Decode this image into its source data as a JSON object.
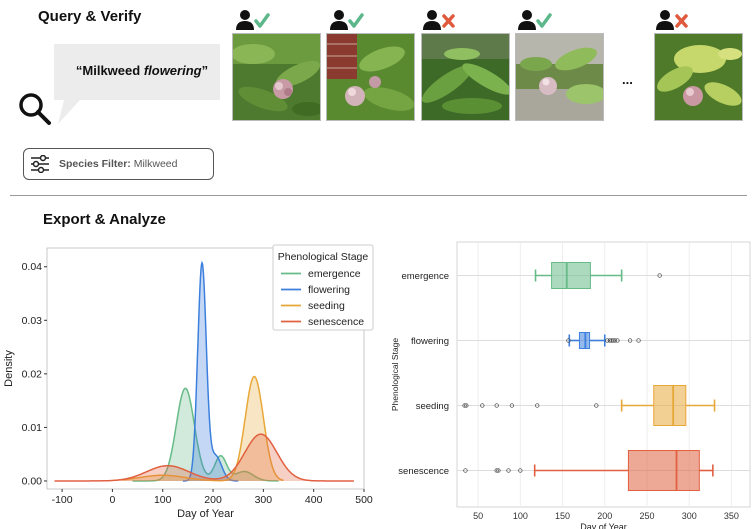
{
  "query_section": {
    "title": "Query & Verify",
    "query_prefix": "“Milkweed ",
    "query_emphasis": "flowering",
    "query_suffix": "”",
    "photos": [
      {
        "verified": true,
        "status_icon": "check-icon"
      },
      {
        "verified": true,
        "status_icon": "check-icon"
      },
      {
        "verified": false,
        "status_icon": "cross-icon"
      },
      {
        "verified": true,
        "status_icon": "check-icon"
      },
      {
        "verified": false,
        "status_icon": "cross-icon"
      }
    ],
    "ellipsis": "...",
    "filter_label": "Species Filter:",
    "filter_value": " Milkweed",
    "colors": {
      "check": "#5cb88a",
      "cross": "#e05a3e"
    }
  },
  "export_section": {
    "title": "Export & Analyze"
  },
  "chart_data": [
    {
      "type": "area",
      "title": "",
      "xlabel": "Day of Year",
      "ylabel": "Density",
      "xlim": [
        -130,
        500
      ],
      "ylim": [
        -0.0015,
        0.0435
      ],
      "xticks": [
        -100,
        0,
        100,
        200,
        300,
        400,
        500
      ],
      "yticks": [
        0.0,
        0.01,
        0.02,
        0.03,
        0.04
      ],
      "ytick_labels": [
        "0.00",
        "0.01",
        "0.02",
        "0.03",
        "0.04"
      ],
      "legend": {
        "title": "Phenological Stage",
        "placement": "top-right"
      },
      "series": [
        {
          "name": "emergence",
          "color": "#66bb88",
          "range": [
            40,
            330
          ],
          "components": [
            {
              "w": 0.78,
              "mu": 145,
              "sd": 18
            },
            {
              "w": 0.14,
              "mu": 215,
              "sd": 12
            },
            {
              "w": 0.08,
              "mu": 262,
              "sd": 18
            }
          ]
        },
        {
          "name": "flowering",
          "color": "#3d7fdd",
          "range": [
            140,
            250
          ],
          "components": [
            {
              "w": 0.86,
              "mu": 178,
              "sd": 8.5
            },
            {
              "w": 0.14,
              "mu": 205,
              "sd": 12
            }
          ]
        },
        {
          "name": "seeding",
          "color": "#e8a838",
          "range": [
            20,
            340
          ],
          "components": [
            {
              "w": 0.88,
              "mu": 282,
              "sd": 18
            },
            {
              "w": 0.12,
              "mu": 100,
              "sd": 45
            }
          ]
        },
        {
          "name": "senescence",
          "color": "#e06040",
          "range": [
            -115,
            480
          ],
          "components": [
            {
              "w": 0.7,
              "mu": 295,
              "sd": 32
            },
            {
              "w": 0.3,
              "mu": 110,
              "sd": 42
            }
          ]
        }
      ]
    },
    {
      "type": "box",
      "title": "",
      "xlabel": "Day of Year",
      "ylabel": "Phenological Stage",
      "xlim": [
        25,
        372
      ],
      "xticks": [
        50,
        100,
        150,
        200,
        250,
        300,
        350
      ],
      "categories": [
        "emergence",
        "flowering",
        "seeding",
        "senescence"
      ],
      "boxes": [
        {
          "name": "emergence",
          "color": "#66bb88",
          "whisker_low": 118,
          "q1": 137,
          "median": 155,
          "q3": 183,
          "whisker_high": 220,
          "outliers": [
            265
          ]
        },
        {
          "name": "flowering",
          "color": "#3d7fdd",
          "whisker_low": 158,
          "q1": 170,
          "median": 177,
          "q3": 182,
          "whisker_high": 200,
          "outliers": [
            157,
            203,
            206,
            208,
            210,
            212,
            215,
            230,
            240
          ]
        },
        {
          "name": "seeding",
          "color": "#e8a838",
          "whisker_low": 220,
          "q1": 258,
          "median": 281,
          "q3": 296,
          "whisker_high": 330,
          "outliers": [
            34,
            36,
            55,
            72,
            90,
            120,
            190
          ]
        },
        {
          "name": "senescence",
          "color": "#e06040",
          "whisker_low": 117,
          "q1": 228,
          "median": 285,
          "q3": 312,
          "whisker_high": 328,
          "outliers": [
            35,
            72,
            74,
            86,
            100
          ]
        }
      ]
    }
  ]
}
